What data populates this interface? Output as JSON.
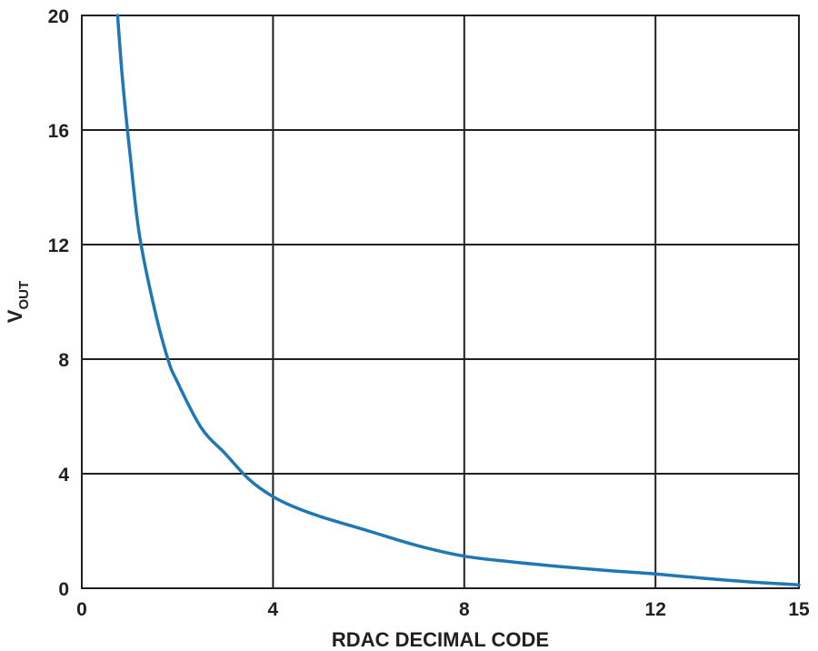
{
  "chart_data": {
    "type": "line",
    "title": "",
    "xlabel": "RDAC DECIMAL CODE",
    "ylabel": {
      "main": "V",
      "subscript": "OUT"
    },
    "xlim": [
      0,
      15
    ],
    "ylim": [
      0,
      20
    ],
    "xticks": [
      0,
      4,
      8,
      12,
      15
    ],
    "yticks": [
      0,
      4,
      8,
      12,
      16,
      20
    ],
    "grid": true,
    "series": [
      {
        "color": "#1f78b4",
        "x": [
          0.75,
          0.85,
          1.0,
          1.2,
          1.5,
          1.8,
          2.0,
          2.5,
          3.0,
          3.5,
          4.0,
          4.5,
          5.0,
          6.0,
          7.0,
          8.0,
          9.0,
          10.0,
          11.0,
          12.0,
          13.0,
          14.0,
          15.0
        ],
        "y": [
          20.0,
          17.8,
          15.3,
          12.4,
          9.9,
          8.0,
          7.2,
          5.6,
          4.7,
          3.8,
          3.2,
          2.8,
          2.5,
          2.0,
          1.5,
          1.12,
          0.92,
          0.76,
          0.62,
          0.5,
          0.35,
          0.22,
          0.12
        ]
      }
    ]
  }
}
